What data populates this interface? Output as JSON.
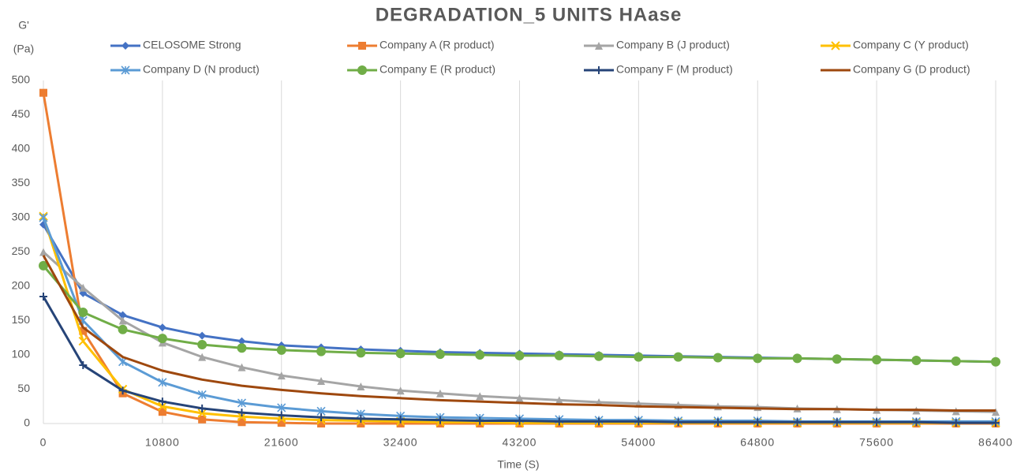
{
  "chart_data": {
    "type": "line",
    "title": "DEGRADATION_5  UNITS HAase",
    "y_label": [
      "G'",
      "(Pa)"
    ],
    "x_label": "Time (S)",
    "x": [
      0,
      3600,
      7200,
      10800,
      14400,
      18000,
      21600,
      25200,
      28800,
      32400,
      36000,
      39600,
      43200,
      46800,
      50400,
      54000,
      57600,
      61200,
      64800,
      68400,
      72000,
      75600,
      79200,
      82800,
      86400
    ],
    "xlim": [
      0,
      86400
    ],
    "xticks": [
      0,
      10800,
      21600,
      32400,
      43200,
      54000,
      64800,
      75600,
      86400
    ],
    "ylim": [
      0,
      500
    ],
    "yticks": [
      0,
      50,
      100,
      150,
      200,
      250,
      300,
      350,
      400,
      450,
      500
    ],
    "grid": "x",
    "legend": "top",
    "series": [
      {
        "name": "CELOSOME Strong",
        "color": "#4472c4",
        "marker": "diamond",
        "values": [
          290,
          190,
          158,
          140,
          128,
          120,
          114,
          111,
          108,
          106,
          104,
          103,
          102,
          101,
          100,
          99,
          98,
          97,
          96,
          95,
          94,
          93,
          92,
          91,
          90
        ]
      },
      {
        "name": "Company A (R product)",
        "color": "#ed7d31",
        "marker": "square",
        "values": [
          482,
          135,
          44,
          17,
          6,
          2,
          1,
          0,
          0,
          0,
          0,
          0,
          0,
          0,
          0,
          0,
          0,
          0,
          0,
          0,
          0,
          0,
          0,
          0,
          0
        ]
      },
      {
        "name": "Company B (J product)",
        "color": "#a5a5a5",
        "marker": "triangle",
        "values": [
          250,
          198,
          150,
          118,
          97,
          82,
          70,
          62,
          54,
          48,
          44,
          40,
          37,
          34,
          31,
          29,
          27,
          25,
          24,
          22,
          21,
          20,
          19,
          18,
          17
        ]
      },
      {
        "name": "Company C (Y product)",
        "color": "#ffc000",
        "marker": "x",
        "values": [
          302,
          120,
          50,
          25,
          15,
          10,
          7,
          5,
          4,
          3,
          2,
          2,
          1,
          1,
          1,
          1,
          1,
          1,
          1,
          1,
          1,
          1,
          1,
          1,
          1
        ]
      },
      {
        "name": "Company D (N product)",
        "color": "#5b9bd5",
        "marker": "star",
        "values": [
          300,
          150,
          90,
          60,
          42,
          30,
          23,
          18,
          14,
          11,
          9,
          8,
          7,
          6,
          5,
          5,
          4,
          4,
          4,
          3,
          3,
          3,
          3,
          3,
          3
        ]
      },
      {
        "name": "Company E (R product)",
        "color": "#70ad47",
        "marker": "circle",
        "values": [
          230,
          162,
          137,
          124,
          115,
          110,
          107,
          105,
          103,
          102,
          101,
          100,
          99,
          99,
          98,
          97,
          97,
          96,
          95,
          95,
          94,
          93,
          92,
          91,
          90
        ]
      },
      {
        "name": "Company F (M product)",
        "color": "#264478",
        "marker": "plus",
        "values": [
          185,
          85,
          48,
          32,
          22,
          16,
          12,
          9,
          7,
          6,
          5,
          4,
          4,
          3,
          3,
          3,
          2,
          2,
          2,
          2,
          2,
          2,
          2,
          1,
          1
        ]
      },
      {
        "name": "Company G (D product)",
        "color": "#9e480e",
        "marker": "none",
        "values": [
          245,
          140,
          97,
          77,
          64,
          55,
          49,
          44,
          40,
          37,
          34,
          32,
          30,
          28,
          27,
          25,
          24,
          23,
          22,
          21,
          21,
          20,
          20,
          19,
          19
        ]
      }
    ]
  }
}
